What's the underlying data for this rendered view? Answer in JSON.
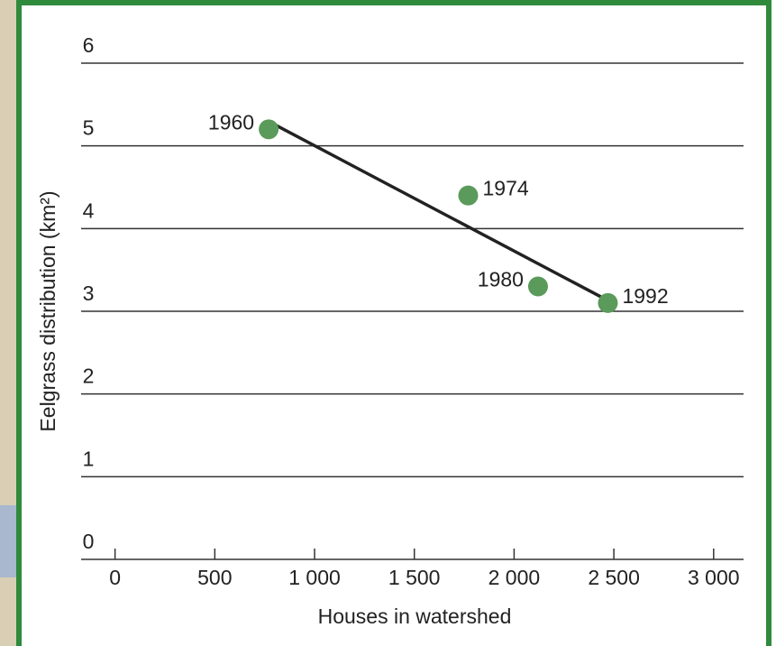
{
  "chart_data": {
    "type": "scatter",
    "y_label": "Eelgrass distribution (km²)",
    "x_label": "Houses in watershed",
    "series": [
      {
        "color": "#5a9a5a",
        "labels": [
          "1960",
          "1974",
          "1980",
          "1992"
        ],
        "x": [
          770,
          1770,
          2120,
          2470
        ],
        "values": [
          5.2,
          4.4,
          3.3,
          3.1
        ]
      }
    ],
    "trend_line": {
      "color": "#222222",
      "x": [
        790,
        2470
      ],
      "values": [
        5.27,
        3.13
      ]
    },
    "xlim": [
      -170,
      3150
    ],
    "xticks": [
      0,
      500,
      {
        "value": 1000,
        "label": "1 000"
      },
      {
        "value": 1500,
        "label": "1 500"
      },
      {
        "value": 2000,
        "label": "2 000"
      },
      {
        "value": 2500,
        "label": "2 500"
      },
      {
        "value": 3000,
        "label": "3 000"
      }
    ],
    "ylim": [
      0,
      6
    ],
    "yticks": [
      0,
      1,
      2,
      3,
      4,
      5,
      6
    ],
    "grid": true
  }
}
